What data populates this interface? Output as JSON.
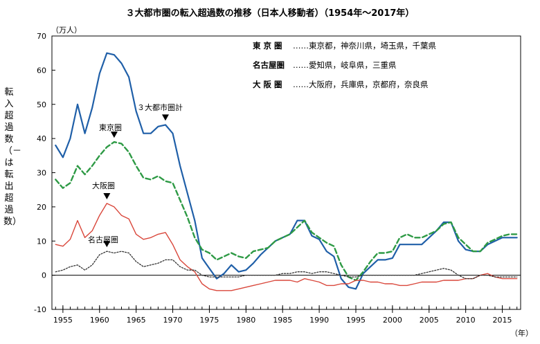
{
  "chart_data": {
    "type": "line",
    "title": "３大都市圏の転入超過数の推移（日本人移動者）（1954年～2017年）",
    "y_unit": "（万人）",
    "x_unit": "（年）",
    "ylabel": "転入超過数（－は転出超過数）",
    "ylim": [
      -10,
      70
    ],
    "yticks": [
      -10,
      0,
      10,
      20,
      30,
      40,
      50,
      60,
      70
    ],
    "xlim": [
      1953.5,
      2017.5
    ],
    "xticks": [
      1955,
      1960,
      1965,
      1970,
      1975,
      1980,
      1985,
      1990,
      1995,
      2000,
      2005,
      2010,
      2015
    ],
    "grid": false,
    "years": [
      1954,
      1955,
      1956,
      1957,
      1958,
      1959,
      1960,
      1961,
      1962,
      1963,
      1964,
      1965,
      1966,
      1967,
      1968,
      1969,
      1970,
      1971,
      1972,
      1973,
      1974,
      1975,
      1976,
      1977,
      1978,
      1979,
      1980,
      1981,
      1982,
      1983,
      1984,
      1985,
      1986,
      1987,
      1988,
      1989,
      1990,
      1991,
      1992,
      1993,
      1994,
      1995,
      1996,
      1997,
      1998,
      1999,
      2000,
      2001,
      2002,
      2003,
      2004,
      2005,
      2006,
      2007,
      2008,
      2009,
      2010,
      2011,
      2012,
      2013,
      2014,
      2015,
      2016,
      2017
    ],
    "series": [
      {
        "name": "３大都市圏計",
        "color": "#1f5fa8",
        "style": "solid",
        "values": [
          38,
          34.5,
          40,
          50,
          41.5,
          49,
          59,
          65,
          64.5,
          62,
          58,
          48,
          41.5,
          41.5,
          43.5,
          44,
          41.5,
          32,
          24,
          16,
          5,
          2,
          -1,
          0.5,
          3,
          1,
          1.5,
          3.5,
          6,
          8,
          10,
          11,
          12,
          16,
          16,
          11.5,
          10.5,
          7,
          5.5,
          -1,
          -3.5,
          -4,
          0.5,
          2.5,
          4.5,
          4.5,
          5,
          9,
          9,
          9,
          9,
          11,
          13,
          15.5,
          15.5,
          10,
          7.5,
          7,
          7,
          9,
          10,
          11,
          11,
          11
        ]
      },
      {
        "name": "東京圏",
        "color": "#2e9a45",
        "style": "dashed",
        "values": [
          28,
          25.5,
          27,
          32,
          29.5,
          32,
          35,
          37.5,
          39,
          38.5,
          36,
          32,
          28.5,
          28,
          29,
          27.5,
          27,
          22,
          17,
          11,
          7.5,
          6.5,
          4.5,
          5.5,
          6.5,
          5.5,
          5,
          7,
          7.5,
          8,
          10,
          11,
          12,
          14,
          16,
          12.5,
          11,
          9.5,
          8.5,
          3,
          -0.5,
          -1.5,
          1,
          4,
          6.5,
          6.5,
          7,
          11,
          12,
          11,
          11,
          12,
          13,
          15,
          15.5,
          11,
          9,
          7,
          7,
          9.5,
          10.5,
          11.5,
          12,
          12
        ]
      },
      {
        "name": "大阪圏",
        "color": "#d9463a",
        "style": "solid",
        "values": [
          9,
          8.5,
          10.5,
          16,
          11,
          13,
          17.5,
          21,
          20,
          17.5,
          16.5,
          12,
          10.5,
          11,
          12,
          12.5,
          9,
          4.5,
          2.5,
          1,
          -2.5,
          -4,
          -4.5,
          -4.5,
          -4.5,
          -4,
          -3.5,
          -3,
          -2.5,
          -2,
          -1.5,
          -1.5,
          -1.5,
          -2,
          -1,
          -1.5,
          -2,
          -3,
          -3,
          -2.5,
          -2.5,
          -1.5,
          -1.5,
          -2,
          -2,
          -2.5,
          -2.5,
          -3,
          -3,
          -2.5,
          -2,
          -2,
          -2,
          -1.5,
          -1.5,
          -1.5,
          -1,
          -1,
          0,
          0.5,
          -0.5,
          -1,
          -1,
          -1
        ]
      },
      {
        "name": "名古屋圏",
        "color": "#333333",
        "style": "dotted",
        "values": [
          1,
          1.5,
          2.5,
          3,
          1.5,
          3,
          6,
          7,
          6.5,
          7,
          6.5,
          4,
          2.5,
          3,
          3.5,
          4.5,
          4.5,
          2.5,
          1.5,
          1.5,
          0,
          -0.5,
          -0.5,
          -0.5,
          -0.5,
          -0.5,
          0,
          0,
          0,
          0,
          0,
          0.5,
          0.5,
          1,
          1,
          0.5,
          1,
          1,
          0.5,
          0,
          -0.5,
          -0.5,
          0,
          0,
          0,
          0,
          0,
          0,
          0,
          0,
          0.5,
          1,
          1.5,
          2,
          1.5,
          0,
          -1,
          -1,
          0,
          0,
          -0.5,
          -0.5,
          -0.5,
          -0.5
        ]
      }
    ],
    "legend": [
      {
        "key": "東 京 圏",
        "members": "……東京都，神奈川県，埼玉県，千葉県"
      },
      {
        "key": "名古屋圏",
        "members": "……愛知県，岐阜県，三重県"
      },
      {
        "key": "大 阪 圏",
        "members": "……大阪府，兵庫県，京都府，奈良県"
      }
    ],
    "annotations": [
      {
        "text": "３大都市圏計",
        "year": 1969,
        "value": 44
      },
      {
        "text": "東京圏",
        "year": 1962,
        "value": 39
      },
      {
        "text": "大阪圏",
        "year": 1961,
        "value": 21
      },
      {
        "text": "名古屋圏",
        "year": 1961,
        "value": 7
      }
    ]
  }
}
